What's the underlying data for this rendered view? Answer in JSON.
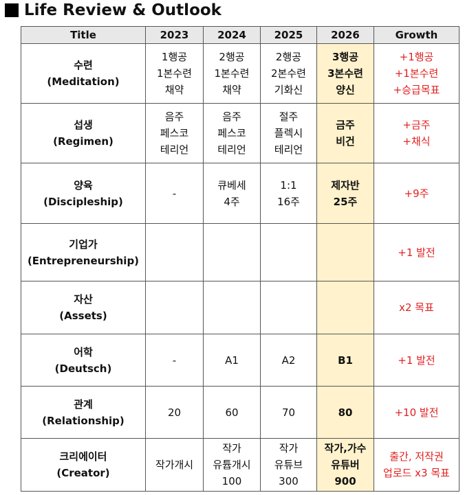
{
  "heading": "Life Review & Outlook",
  "columns": [
    "Title",
    "2023",
    "2024",
    "2025",
    "2026",
    "Growth"
  ],
  "rows": [
    {
      "title": [
        "수련",
        "(Meditation)"
      ],
      "y2023": [
        "1행공",
        "1본수련",
        "채약"
      ],
      "y2024": [
        "2행공",
        "1본수련",
        "채약"
      ],
      "y2025": [
        "2행공",
        "2본수련",
        "기화신"
      ],
      "y2026": [
        "3행공",
        "3본수련",
        "양신"
      ],
      "growth": [
        "+1행공",
        "+1본수련",
        "+승급목표"
      ]
    },
    {
      "title": [
        "섭생",
        "(Regimen)"
      ],
      "y2023": [
        "음주",
        "페스코",
        "테리언"
      ],
      "y2024": [
        "음주",
        "페스코",
        "테리언"
      ],
      "y2025": [
        "절주",
        "플렉시",
        "테리언"
      ],
      "y2026": [
        "금주",
        "비건"
      ],
      "growth": [
        "+금주",
        "+채식"
      ]
    },
    {
      "title": [
        "양육",
        "(Discipleship)"
      ],
      "y2023": [
        "-"
      ],
      "y2024": [
        "큐베세",
        "4주"
      ],
      "y2025": [
        "1:1",
        "16주"
      ],
      "y2026": [
        "제자반",
        "25주"
      ],
      "growth": [
        "+9주"
      ]
    },
    {
      "title": [
        "기업가",
        "(Entrepreneurship)"
      ],
      "y2023": [],
      "y2024": [],
      "y2025": [],
      "y2026": [],
      "growth": [
        "+1 발전"
      ]
    },
    {
      "title": [
        "자산",
        "(Assets)"
      ],
      "y2023": [],
      "y2024": [],
      "y2025": [],
      "y2026": [],
      "growth": [
        "x2 목표"
      ]
    },
    {
      "title": [
        "어학",
        "(Deutsch)"
      ],
      "y2023": [
        "-"
      ],
      "y2024": [
        "A1"
      ],
      "y2025": [
        "A2"
      ],
      "y2026": [
        "B1"
      ],
      "growth": [
        "+1 발전"
      ]
    },
    {
      "title": [
        "관계",
        "(Relationship)"
      ],
      "y2023": [
        "20"
      ],
      "y2024": [
        "60"
      ],
      "y2025": [
        "70"
      ],
      "y2026": [
        "80"
      ],
      "growth": [
        "+10 발전"
      ]
    },
    {
      "title": [
        "크리에이터",
        "(Creator)"
      ],
      "y2023": [
        "작가개시"
      ],
      "y2024": [
        "작가",
        "유튭개시",
        "100"
      ],
      "y2025": [
        "작가",
        "유튜브",
        "300"
      ],
      "y2026": [
        "작가,가수",
        "유튜버",
        "900"
      ],
      "growth": [
        "출간, 저작권",
        "업로드 x3 목표"
      ]
    }
  ]
}
